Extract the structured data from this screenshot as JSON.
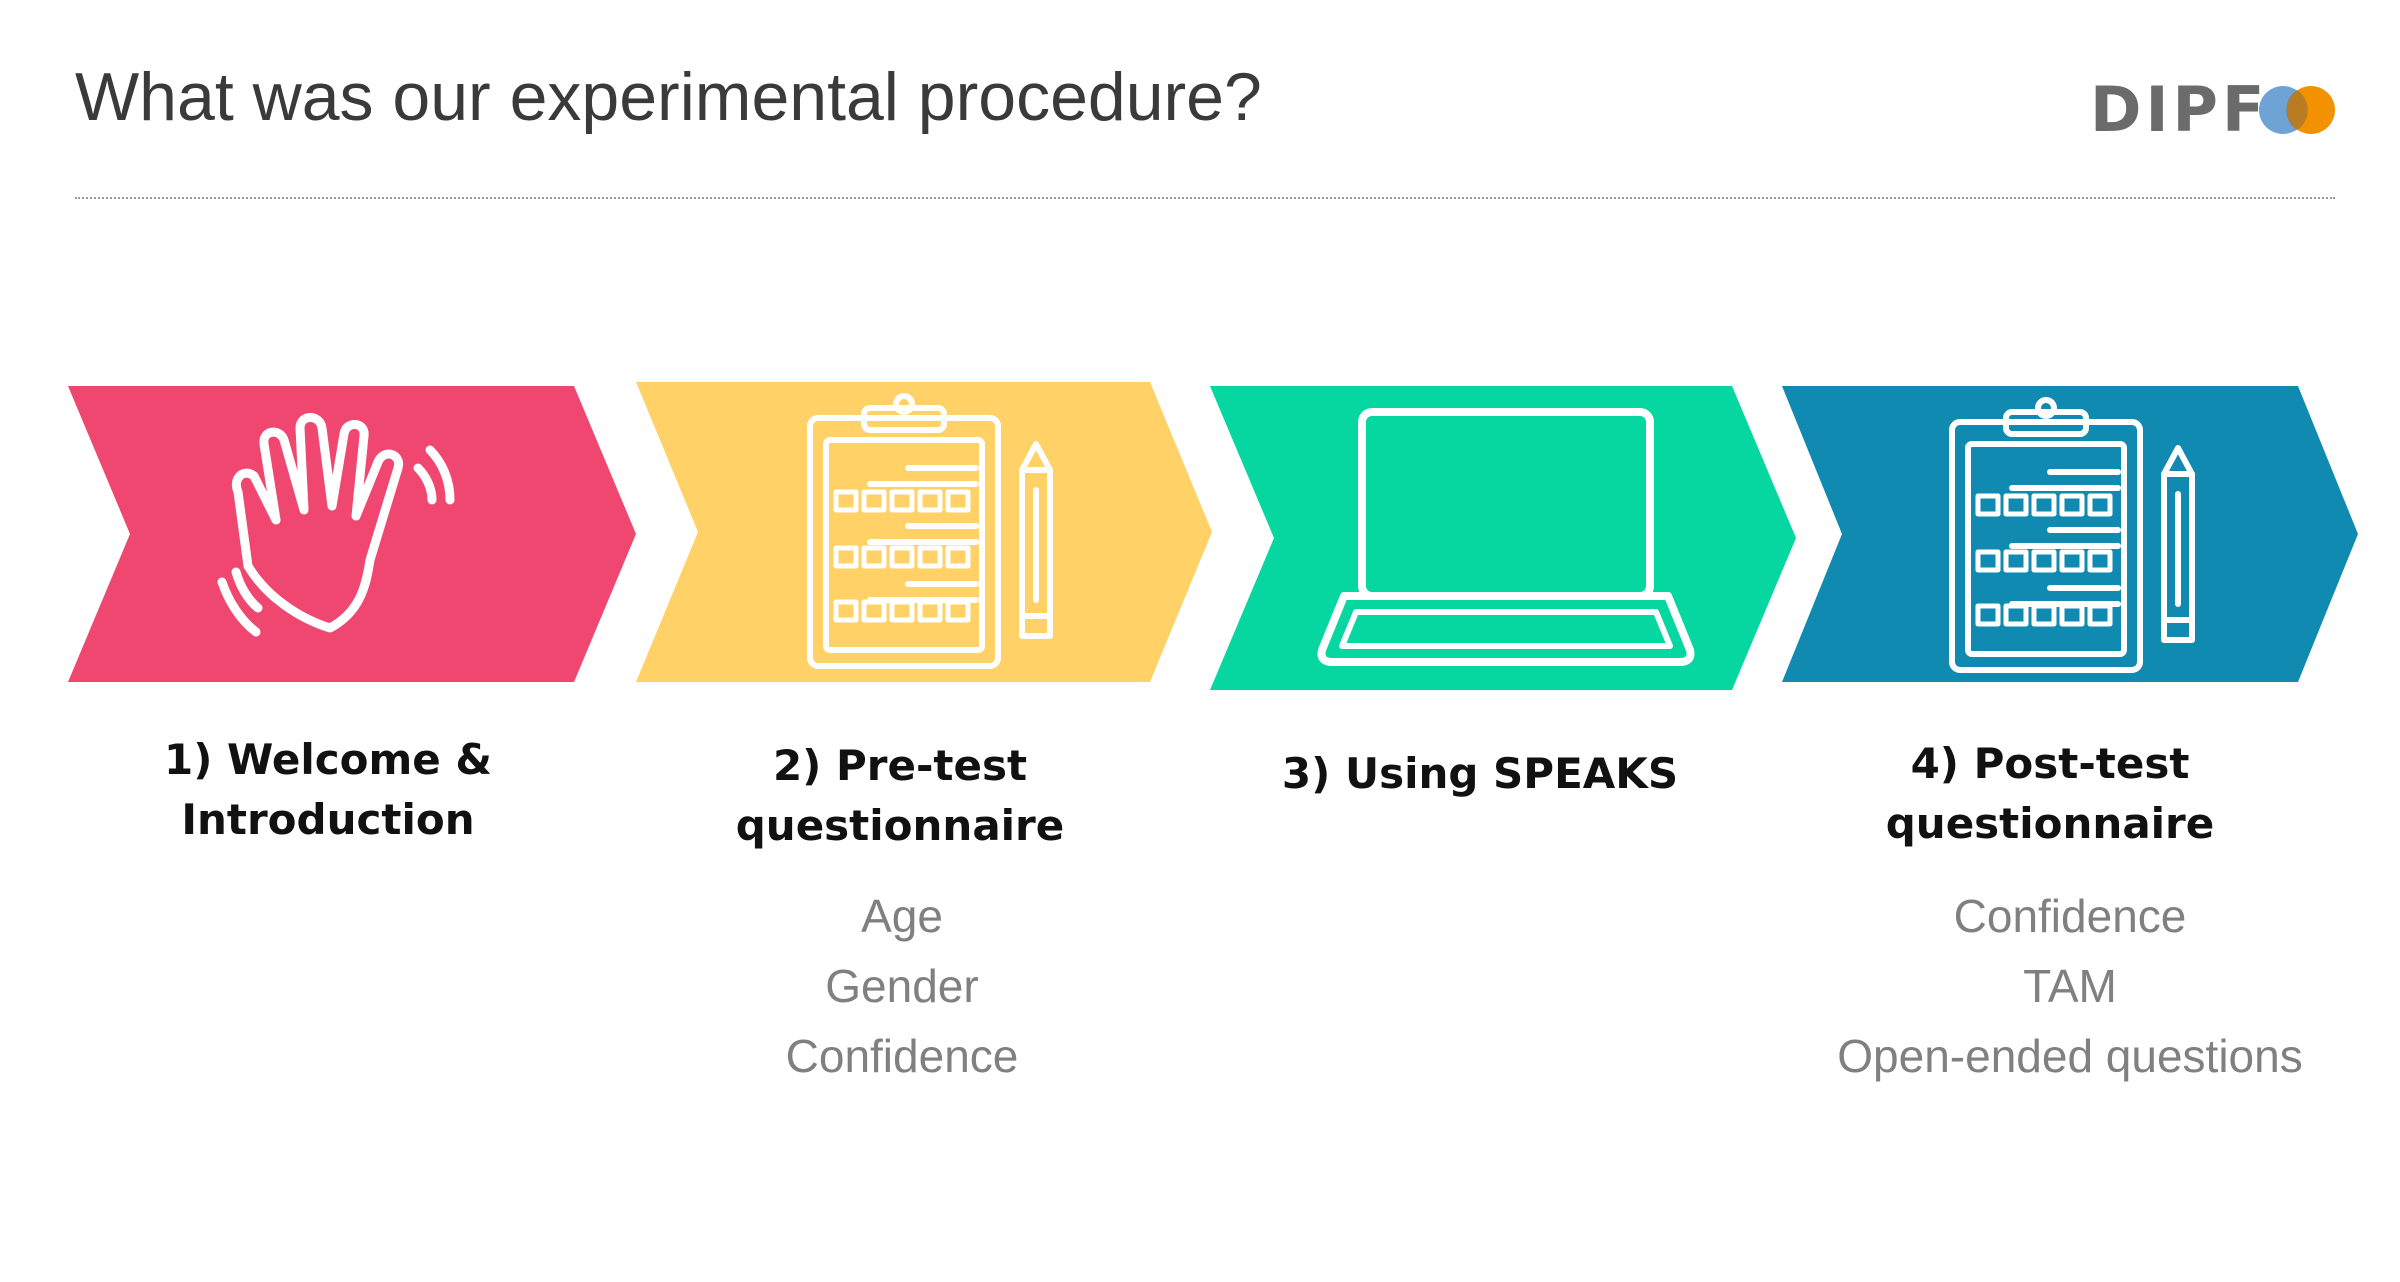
{
  "title": "What was our experimental procedure?",
  "logo": {
    "text": "DIPF",
    "colors": {
      "blue": "#6fa3d6",
      "orange": "#f39200"
    }
  },
  "steps": [
    {
      "color": "#ef476f",
      "icon": "waving-hand-icon",
      "label_line1": "1) Welcome &",
      "label_line2": "Introduction",
      "items": []
    },
    {
      "color": "#ffd166",
      "icon": "clipboard-pencil-icon",
      "label_line1": "2) Pre-test",
      "label_line2": "questionnaire",
      "items": [
        "Age",
        "Gender",
        "Confidence"
      ]
    },
    {
      "color": "#06d6a0",
      "icon": "laptop-icon",
      "label_line1": "3) Using SPEAKS",
      "label_line2": "",
      "items": []
    },
    {
      "color": "#118ab2",
      "icon": "clipboard-pencil-icon",
      "label_line1": "4) Post-test",
      "label_line2": "questionnaire",
      "items": [
        "Confidence",
        "TAM",
        "Open-ended questions"
      ]
    }
  ]
}
